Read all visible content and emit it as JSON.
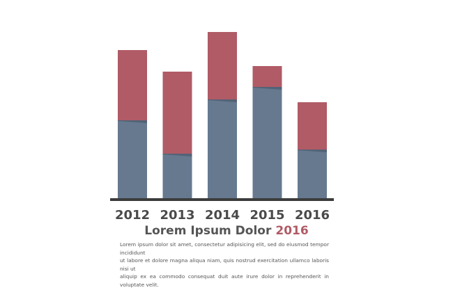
{
  "chart_data": {
    "type": "bar",
    "stacked": true,
    "categories": [
      "2012",
      "2013",
      "2014",
      "2015",
      "2016"
    ],
    "series": [
      {
        "color": "#66798f",
        "values": [
          112,
          64,
          142,
          160,
          70
        ]
      },
      {
        "color": "#b05b66",
        "values": [
          101,
          118,
          97,
          30,
          68
        ]
      }
    ],
    "ylim": [
      0,
      240
    ],
    "grid": false,
    "title": "Lorem Ipsum Dolor",
    "xlabel": "",
    "ylabel": ""
  },
  "heading": {
    "text": "Lorem Ipsum Dolor",
    "year": "2016"
  },
  "paragraph": [
    "Lorem ipsum dolor sit amet, consectetur adipisicing elit, sed do eiusmod tempor incididunt",
    "ut labore et dolore magna aliqua niam, quis nostrud exercitation ullamco laboris nisi ut",
    "aliquip ex ea commodo consequat duit aute irure dolor in reprehenderit in voluptate velit."
  ],
  "colors": {
    "baseline": "#3c3c3c",
    "tick_text": "#4a4a4a",
    "title_text": "#555555",
    "accent": "#b05b66"
  }
}
